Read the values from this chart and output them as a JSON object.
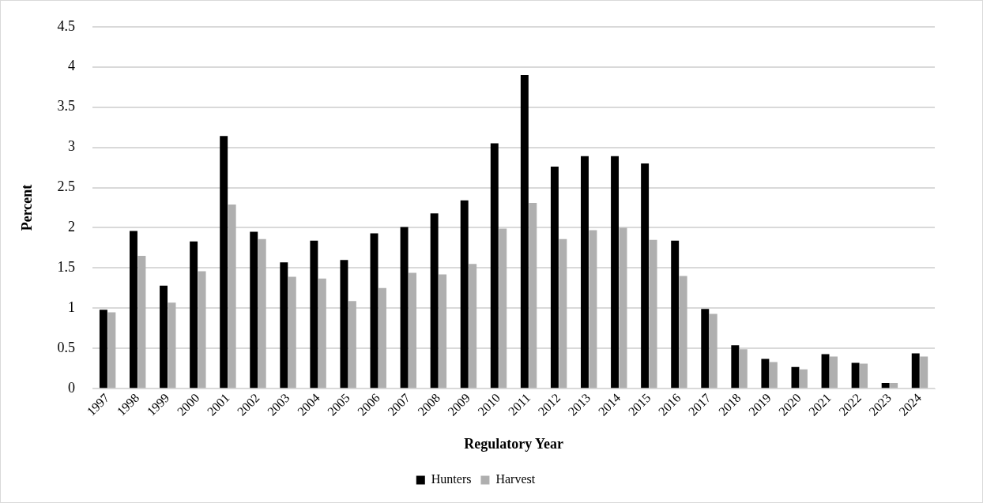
{
  "chart_data": {
    "type": "bar",
    "xlabel": "Regulatory Year",
    "ylabel": "Percent",
    "categories": [
      "1997",
      "1998",
      "1999",
      "2000",
      "2001",
      "2002",
      "2003",
      "2004",
      "2005",
      "2006",
      "2007",
      "2008",
      "2009",
      "2010",
      "2011",
      "2012",
      "2013",
      "2014",
      "2015",
      "2016",
      "2017",
      "2018",
      "2019",
      "2020",
      "2021",
      "2022",
      "2023",
      "2024"
    ],
    "series": [
      {
        "name": "Hunters",
        "color": "#000000",
        "values": [
          0.98,
          1.96,
          1.28,
          1.83,
          3.14,
          1.95,
          1.57,
          1.84,
          1.6,
          1.93,
          2.01,
          2.18,
          2.34,
          3.05,
          3.9,
          2.76,
          2.89,
          2.89,
          2.8,
          1.84,
          0.99,
          0.54,
          0.37,
          0.27,
          0.43,
          0.32,
          0.07,
          0.44
        ]
      },
      {
        "name": "Harvest",
        "color": "#afafaf",
        "values": [
          0.95,
          1.65,
          1.07,
          1.46,
          2.29,
          1.86,
          1.39,
          1.37,
          1.09,
          1.25,
          1.44,
          1.42,
          1.55,
          1.99,
          2.31,
          1.86,
          1.97,
          2.0,
          1.85,
          1.4,
          0.93,
          0.49,
          0.33,
          0.24,
          0.4,
          0.31,
          0.07,
          0.4
        ]
      }
    ],
    "ylim": [
      0,
      4.5
    ],
    "yticks": [
      0,
      0.5,
      1,
      1.5,
      2,
      2.5,
      3,
      3.5,
      4,
      4.5
    ],
    "grid": "y",
    "legend": "bottom"
  }
}
